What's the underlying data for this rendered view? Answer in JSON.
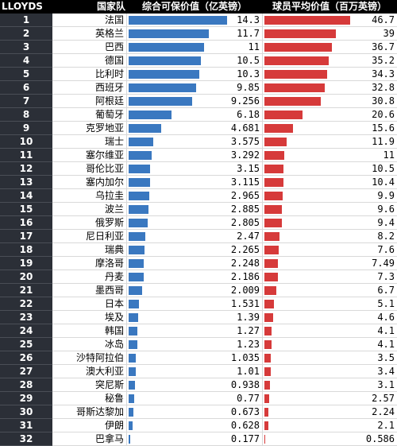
{
  "header": {
    "col_rank": "LLOYDS",
    "col_country": "国家队",
    "col_insured": "综合可保价值（亿英镑）",
    "col_player": "球员平均价值（百万英镑）"
  },
  "colors": {
    "insured_bar": "#3a78c0",
    "player_bar": "#d63a3a",
    "rank_bg": "#2b2f37",
    "header_bg": "#000000"
  },
  "chart_data": {
    "type": "table",
    "columns": [
      "LLOYDS",
      "国家队",
      "综合可保价值（亿英镑）",
      "球员平均价值（百万英镑）"
    ],
    "rows": [
      {
        "rank": "1",
        "country": "法国",
        "insured": "14.3",
        "player": "46.7"
      },
      {
        "rank": "2",
        "country": "英格兰",
        "insured": "11.7",
        "player": "39"
      },
      {
        "rank": "3",
        "country": "巴西",
        "insured": "11",
        "player": "36.7"
      },
      {
        "rank": "4",
        "country": "德国",
        "insured": "10.5",
        "player": "35.2"
      },
      {
        "rank": "5",
        "country": "比利时",
        "insured": "10.3",
        "player": "34.3"
      },
      {
        "rank": "6",
        "country": "西班牙",
        "insured": "9.85",
        "player": "32.8"
      },
      {
        "rank": "7",
        "country": "阿根廷",
        "insured": "9.256",
        "player": "30.8"
      },
      {
        "rank": "8",
        "country": "葡萄牙",
        "insured": "6.18",
        "player": "20.6"
      },
      {
        "rank": "9",
        "country": "克罗地亚",
        "insured": "4.681",
        "player": "15.6"
      },
      {
        "rank": "10",
        "country": "瑞士",
        "insured": "3.575",
        "player": "11.9"
      },
      {
        "rank": "11",
        "country": "塞尔维亚",
        "insured": "3.292",
        "player": "11"
      },
      {
        "rank": "12",
        "country": "哥伦比亚",
        "insured": "3.15",
        "player": "10.5"
      },
      {
        "rank": "13",
        "country": "塞内加尔",
        "insured": "3.115",
        "player": "10.4"
      },
      {
        "rank": "14",
        "country": "乌拉圭",
        "insured": "2.965",
        "player": "9.9"
      },
      {
        "rank": "15",
        "country": "波兰",
        "insured": "2.885",
        "player": "9.6"
      },
      {
        "rank": "16",
        "country": "俄罗斯",
        "insured": "2.805",
        "player": "9.4"
      },
      {
        "rank": "17",
        "country": "尼日利亚",
        "insured": "2.47",
        "player": "8.2"
      },
      {
        "rank": "18",
        "country": "瑞典",
        "insured": "2.265",
        "player": "7.6"
      },
      {
        "rank": "19",
        "country": "摩洛哥",
        "insured": "2.248",
        "player": "7.49"
      },
      {
        "rank": "20",
        "country": "丹麦",
        "insured": "2.186",
        "player": "7.3"
      },
      {
        "rank": "21",
        "country": "墨西哥",
        "insured": "2.009",
        "player": "6.7"
      },
      {
        "rank": "22",
        "country": "日本",
        "insured": "1.531",
        "player": "5.1"
      },
      {
        "rank": "23",
        "country": "埃及",
        "insured": "1.39",
        "player": "4.6"
      },
      {
        "rank": "24",
        "country": "韩国",
        "insured": "1.27",
        "player": "4.1"
      },
      {
        "rank": "25",
        "country": "冰岛",
        "insured": "1.23",
        "player": "4.1"
      },
      {
        "rank": "26",
        "country": "沙特阿拉伯",
        "insured": "1.035",
        "player": "3.5"
      },
      {
        "rank": "27",
        "country": "澳大利亚",
        "insured": "1.01",
        "player": "3.4"
      },
      {
        "rank": "28",
        "country": "突尼斯",
        "insured": "0.938",
        "player": "3.1"
      },
      {
        "rank": "29",
        "country": "秘鲁",
        "insured": "0.77",
        "player": "2.57"
      },
      {
        "rank": "30",
        "country": "哥斯达黎加",
        "insured": "0.673",
        "player": "2.24"
      },
      {
        "rank": "31",
        "country": "伊朗",
        "insured": "0.628",
        "player": "2.1"
      },
      {
        "rank": "32",
        "country": "巴拿马",
        "insured": "0.177",
        "player": "0.586"
      }
    ]
  }
}
